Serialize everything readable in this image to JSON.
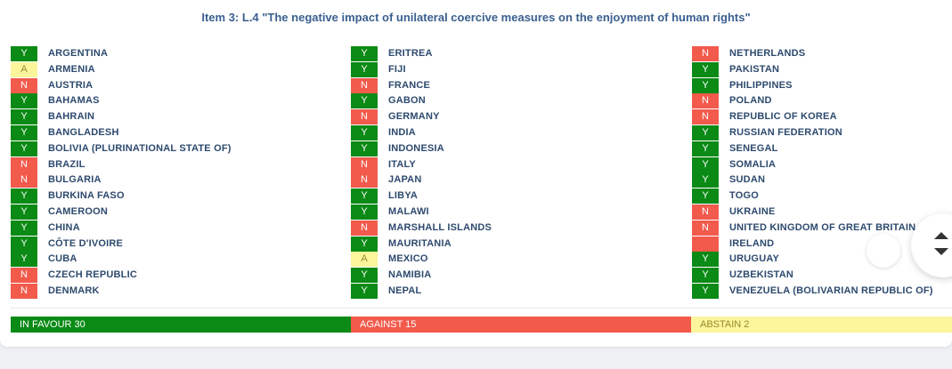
{
  "title": "Item 3: L.4 \"The negative impact of unilateral coercive measures on the enjoyment of human rights\"",
  "columns": [
    [
      {
        "vote": "Y",
        "country": "ARGENTINA"
      },
      {
        "vote": "A",
        "country": "ARMENIA"
      },
      {
        "vote": "N",
        "country": "AUSTRIA"
      },
      {
        "vote": "Y",
        "country": "BAHAMAS"
      },
      {
        "vote": "Y",
        "country": "BAHRAIN"
      },
      {
        "vote": "Y",
        "country": "BANGLADESH"
      },
      {
        "vote": "Y",
        "country": "BOLIVIA (PLURINATIONAL STATE OF)"
      },
      {
        "vote": "N",
        "country": "BRAZIL"
      },
      {
        "vote": "N",
        "country": "BULGARIA"
      },
      {
        "vote": "Y",
        "country": "BURKINA FASO"
      },
      {
        "vote": "Y",
        "country": "CAMEROON"
      },
      {
        "vote": "Y",
        "country": "CHINA"
      },
      {
        "vote": "Y",
        "country": "CÔTE D'IVOIRE"
      },
      {
        "vote": "Y",
        "country": "CUBA"
      },
      {
        "vote": "N",
        "country": "CZECH REPUBLIC"
      },
      {
        "vote": "N",
        "country": "DENMARK"
      }
    ],
    [
      {
        "vote": "Y",
        "country": "ERITREA"
      },
      {
        "vote": "Y",
        "country": "FIJI"
      },
      {
        "vote": "N",
        "country": "FRANCE"
      },
      {
        "vote": "Y",
        "country": "GABON"
      },
      {
        "vote": "N",
        "country": "GERMANY"
      },
      {
        "vote": "Y",
        "country": "INDIA"
      },
      {
        "vote": "Y",
        "country": "INDONESIA"
      },
      {
        "vote": "N",
        "country": "ITALY"
      },
      {
        "vote": "N",
        "country": "JAPAN"
      },
      {
        "vote": "Y",
        "country": "LIBYA"
      },
      {
        "vote": "Y",
        "country": "MALAWI"
      },
      {
        "vote": "N",
        "country": "MARSHALL ISLANDS"
      },
      {
        "vote": "Y",
        "country": "MAURITANIA"
      },
      {
        "vote": "A",
        "country": "MEXICO"
      },
      {
        "vote": "Y",
        "country": "NAMIBIA"
      },
      {
        "vote": "Y",
        "country": "NEPAL"
      }
    ],
    [
      {
        "vote": "N",
        "country": "NETHERLANDS"
      },
      {
        "vote": "Y",
        "country": "PAKISTAN"
      },
      {
        "vote": "Y",
        "country": "PHILIPPINES"
      },
      {
        "vote": "N",
        "country": "POLAND"
      },
      {
        "vote": "N",
        "country": "REPUBLIC OF KOREA"
      },
      {
        "vote": "Y",
        "country": "RUSSIAN FEDERATION"
      },
      {
        "vote": "Y",
        "country": "SENEGAL"
      },
      {
        "vote": "Y",
        "country": "SOMALIA"
      },
      {
        "vote": "Y",
        "country": "SUDAN"
      },
      {
        "vote": "Y",
        "country": "TOGO"
      },
      {
        "vote": "N",
        "country": "UKRAINE"
      },
      {
        "vote": "N",
        "country": "UNITED KINGDOM OF GREAT BRITAIN"
      },
      {
        "vote": "",
        "country": "IRELAND"
      },
      {
        "vote": "Y",
        "country": "URUGUAY"
      },
      {
        "vote": "Y",
        "country": "UZBEKISTAN"
      },
      {
        "vote": "Y",
        "country": "VENEZUELA (BOLIVARIAN REPUBLIC OF)"
      }
    ]
  ],
  "totals": {
    "favour": "IN FAVOUR 30",
    "against": "AGAINST 15",
    "abstain": "ABSTAIN 2"
  },
  "colors": {
    "yes": "#0b8a16",
    "no": "#f25a4c",
    "abstain": "#fbf59c",
    "title": "#3a5f8f",
    "country": "#2d4a6e"
  },
  "icons": {
    "scroll_up": "triangle-up-icon",
    "scroll_down": "triangle-down-icon"
  }
}
